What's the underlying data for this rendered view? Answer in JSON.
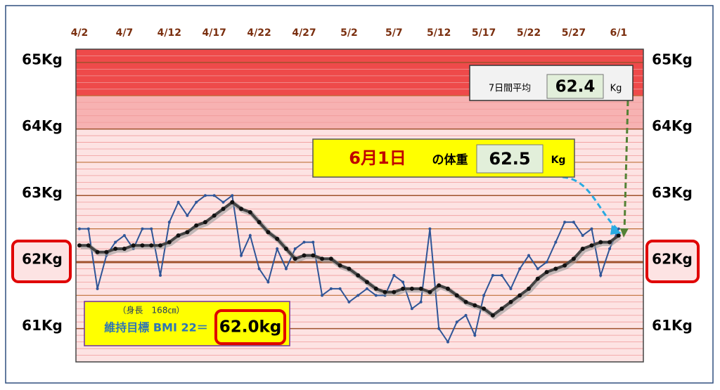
{
  "chart_data": {
    "type": "line",
    "categories": [
      "4/2",
      null,
      null,
      null,
      null,
      "4/7",
      null,
      null,
      null,
      null,
      "4/12",
      null,
      null,
      null,
      null,
      "4/17",
      null,
      null,
      null,
      null,
      "4/22",
      null,
      null,
      null,
      null,
      "4/27",
      null,
      null,
      null,
      null,
      "5/2",
      null,
      null,
      null,
      null,
      "5/7",
      null,
      null,
      null,
      null,
      "5/12",
      null,
      null,
      null,
      null,
      "5/17",
      null,
      null,
      null,
      null,
      "5/22",
      null,
      null,
      null,
      null,
      "5/27",
      null,
      null,
      null,
      null,
      "6/1"
    ],
    "series": [
      {
        "color": "#2f5597",
        "values": [
          62.5,
          62.5,
          61.6,
          62.1,
          62.3,
          62.4,
          62.2,
          62.5,
          62.5,
          61.8,
          62.6,
          62.9,
          62.7,
          62.9,
          63.0,
          63.0,
          62.9,
          63.0,
          62.1,
          62.4,
          61.9,
          61.7,
          62.2,
          61.9,
          62.2,
          62.3,
          62.3,
          61.5,
          61.6,
          61.6,
          61.4,
          61.5,
          61.6,
          61.5,
          61.5,
          61.8,
          61.7,
          61.3,
          61.4,
          62.5,
          61.0,
          60.8,
          61.1,
          61.2,
          60.9,
          61.5,
          61.8,
          61.8,
          61.6,
          61.9,
          62.1,
          61.9,
          62.0,
          62.3,
          62.6,
          62.6,
          62.4,
          62.5,
          61.8,
          62.2,
          62.5
        ]
      },
      {
        "color": "#111111",
        "values": [
          62.25,
          62.25,
          62.15,
          62.15,
          62.2,
          62.2,
          62.25,
          62.25,
          62.25,
          62.25,
          62.3,
          62.4,
          62.45,
          62.55,
          62.6,
          62.7,
          62.8,
          62.9,
          62.8,
          62.75,
          62.6,
          62.45,
          62.35,
          62.2,
          62.05,
          62.1,
          62.1,
          62.05,
          62.05,
          61.95,
          61.9,
          61.8,
          61.7,
          61.6,
          61.55,
          61.55,
          61.6,
          61.6,
          61.6,
          61.55,
          61.65,
          61.6,
          61.5,
          61.4,
          61.35,
          61.3,
          61.2,
          61.3,
          61.4,
          61.5,
          61.6,
          61.75,
          61.85,
          61.9,
          61.95,
          62.05,
          62.2,
          62.25,
          62.3,
          62.3,
          62.4
        ]
      }
    ],
    "ylim": [
      60.5,
      65.2
    ],
    "yticks": [
      {
        "value": 61,
        "label": "61Kg"
      },
      {
        "value": 62,
        "label": "62Kg"
      },
      {
        "value": 63,
        "label": "63Kg"
      },
      {
        "value": 64,
        "label": "64Kg"
      },
      {
        "value": 65,
        "label": "65Kg"
      }
    ],
    "yticks_minor": [
      60.6,
      60.7,
      60.8,
      60.9,
      61.1,
      61.2,
      61.3,
      61.4,
      61.5,
      61.6,
      61.7,
      61.8,
      61.9,
      62.1,
      62.2,
      62.3,
      62.4,
      62.5,
      62.6,
      62.7,
      62.8,
      62.9,
      63.1,
      63.2,
      63.3,
      63.4,
      63.5,
      63.6,
      63.7,
      63.8,
      63.9,
      64.1,
      64.2,
      64.3,
      64.4,
      64.5,
      64.6,
      64.7,
      64.8,
      64.9,
      65.1
    ],
    "highlight_ytick": 62,
    "bands": [
      {
        "from": 60.5,
        "to": 64,
        "color": "#fde3e3"
      },
      {
        "from": 64,
        "to": 64.5,
        "color": "#f7b2b2"
      },
      {
        "from": 64.5,
        "to": 65.2,
        "color": "#ee4a4a"
      }
    ],
    "grid": true,
    "annotations": {
      "avg_label": "7日間平均",
      "avg_value": "62.4",
      "avg_unit": "Kg",
      "date_label": "6月1日",
      "weight_label": "の体重",
      "weight_value": "62.5",
      "weight_unit": "Kg",
      "height_note": "（身長　168㎝）",
      "target_label": "維持目標 BMI 22＝",
      "target_value": "62.0kg"
    }
  }
}
